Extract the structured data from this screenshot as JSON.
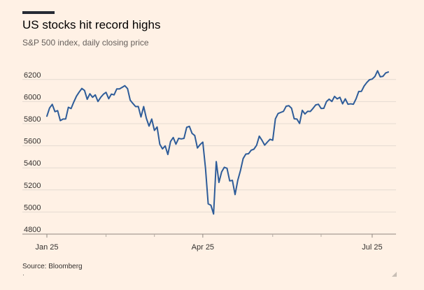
{
  "header": {
    "title": "US stocks hit record highs",
    "subtitle": "S&P 500 index, daily closing price"
  },
  "footer": {
    "source": "Source: Bloomberg"
  },
  "colors": {
    "background": "#fff1e5",
    "line": "#2e5c99",
    "grid": "#e4dad1",
    "text": "#33302e",
    "subtitle": "#66605c"
  },
  "chart_data": {
    "type": "line",
    "title": "US stocks hit record highs",
    "subtitle": "S&P 500 index, daily closing price",
    "xlabel": "",
    "ylabel": "",
    "ylim": [
      4800,
      6300
    ],
    "yticks": [
      4800,
      5000,
      5200,
      5400,
      5600,
      5800,
      6000,
      6200
    ],
    "xticks": [
      {
        "label": "Jan 25",
        "index": 0
      },
      {
        "label": "Apr 25",
        "index": 58
      },
      {
        "label": "Jul 25",
        "index": 121
      }
    ],
    "grid": true,
    "legend": "none",
    "series": [
      {
        "values": [
          5868,
          5942,
          5975,
          5909,
          5918,
          5828,
          5842,
          5843,
          5949,
          5937,
          5996,
          6049,
          6086,
          6119,
          6101,
          6021,
          6071,
          6039,
          6061,
          6001,
          6038,
          6066,
          6084,
          6026,
          6068,
          6061,
          6115,
          6115,
          6129,
          6144,
          6118,
          6013,
          5983,
          5955,
          5956,
          5861,
          5955,
          5849,
          5778,
          5842,
          5739,
          5770,
          5614,
          5572,
          5599,
          5521,
          5639,
          5675,
          5614,
          5667,
          5662,
          5667,
          5767,
          5776,
          5712,
          5693,
          5580,
          5611,
          5633,
          5396,
          5074,
          5062,
          4982,
          5457,
          5268,
          5363,
          5405,
          5396,
          5282,
          5287,
          5158,
          5287,
          5375,
          5484,
          5525,
          5528,
          5560,
          5569,
          5604,
          5687,
          5650,
          5606,
          5633,
          5659,
          5650,
          5844,
          5892,
          5902,
          5912,
          5958,
          5963,
          5940,
          5844,
          5842,
          5802,
          5921,
          5888,
          5912,
          5911,
          5939,
          5970,
          5976,
          5938,
          5939,
          6000,
          6022,
          6001,
          6047,
          6025,
          6039,
          5980,
          6025,
          5976,
          5980,
          5976,
          6025,
          6092,
          6093,
          6141,
          6173,
          6198,
          6204,
          6227,
          6279,
          6225,
          6229,
          6259,
          6268
        ]
      }
    ]
  }
}
